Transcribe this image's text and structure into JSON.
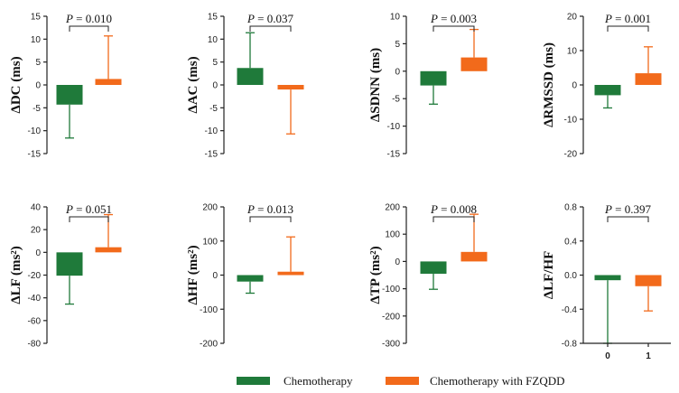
{
  "colors": {
    "chemo": "#1f7a3a",
    "fzqdd": "#f26a1b"
  },
  "legend": [
    {
      "label": "Chemotherapy",
      "color": "#1f7a3a"
    },
    {
      "label": "Chemotherapy with FZQDD",
      "color": "#f26a1b"
    }
  ],
  "chart_data": [
    {
      "type": "bar",
      "ylabel": "ΔDC (ms)",
      "p_label": "P = 0.010",
      "ylim": [
        -15,
        15
      ],
      "ticks": [
        -15,
        -10,
        -5,
        0,
        5,
        10,
        15
      ],
      "tick_labels": [
        "-15",
        "-10",
        "-5",
        "0",
        "5",
        "10",
        "15"
      ],
      "series": [
        {
          "name": "Chemotherapy",
          "value": -4.3,
          "error": 7.3
        },
        {
          "name": "Chemotherapy with FZQDD",
          "value": 1.3,
          "error": 9.4
        }
      ]
    },
    {
      "type": "bar",
      "ylabel": "ΔAC (ms)",
      "p_label": "P = 0.037",
      "ylim": [
        -15,
        15
      ],
      "ticks": [
        -15,
        -10,
        -5,
        0,
        5,
        10,
        15
      ],
      "tick_labels": [
        "-15",
        "-10",
        "-5",
        "0",
        "5",
        "10",
        "15"
      ],
      "series": [
        {
          "name": "Chemotherapy",
          "value": 3.7,
          "error": 7.7
        },
        {
          "name": "Chemotherapy with FZQDD",
          "value": -1.0,
          "error": 9.7
        }
      ]
    },
    {
      "type": "bar",
      "ylabel": "ΔSDNN (ms)",
      "p_label": "P = 0.003",
      "ylim": [
        -15,
        10
      ],
      "ticks": [
        -15,
        -10,
        -5,
        0,
        5,
        10
      ],
      "tick_labels": [
        "-15",
        "-10",
        "-5",
        "0",
        "5",
        "10"
      ],
      "series": [
        {
          "name": "Chemotherapy",
          "value": -2.6,
          "error": 3.4
        },
        {
          "name": "Chemotherapy with FZQDD",
          "value": 2.5,
          "error": 5.1
        }
      ]
    },
    {
      "type": "bar",
      "ylabel": "ΔRMSSD (ms)",
      "p_label": "P = 0.001",
      "ylim": [
        -20,
        20
      ],
      "ticks": [
        -20,
        -10,
        0,
        10,
        20
      ],
      "tick_labels": [
        "-20",
        "-10",
        "0",
        "10",
        "20"
      ],
      "series": [
        {
          "name": "Chemotherapy",
          "value": -3.0,
          "error": 3.7
        },
        {
          "name": "Chemotherapy with FZQDD",
          "value": 3.4,
          "error": 7.7
        }
      ]
    },
    {
      "type": "bar",
      "ylabel": "ΔLF (ms²)",
      "p_label": "P = 0.051",
      "ylim": [
        -80,
        40
      ],
      "ticks": [
        -80,
        -60,
        -40,
        -20,
        0,
        20,
        40
      ],
      "tick_labels": [
        "-80",
        "-60",
        "-40",
        "-20",
        "0",
        "20",
        "40"
      ],
      "series": [
        {
          "name": "Chemotherapy",
          "value": -20.5,
          "error": 25.0
        },
        {
          "name": "Chemotherapy with FZQDD",
          "value": 4.5,
          "error": 28.7
        }
      ]
    },
    {
      "type": "bar",
      "ylabel": "ΔHF (ms²)",
      "p_label": "P = 0.013",
      "ylim": [
        -200,
        200
      ],
      "ticks": [
        -200,
        -100,
        0,
        100,
        200
      ],
      "tick_labels": [
        "-200",
        "-100",
        "0",
        "100",
        "200"
      ],
      "series": [
        {
          "name": "Chemotherapy",
          "value": -19,
          "error": 34
        },
        {
          "name": "Chemotherapy with FZQDD",
          "value": 10,
          "error": 102
        }
      ]
    },
    {
      "type": "bar",
      "ylabel": "ΔTP (ms²)",
      "p_label": "P = 0.008",
      "ylim": [
        -300,
        200
      ],
      "ticks": [
        -300,
        -200,
        -100,
        0,
        100,
        200
      ],
      "tick_labels": [
        "-300",
        "-200",
        "-100",
        "0",
        "100",
        "200"
      ],
      "series": [
        {
          "name": "Chemotherapy",
          "value": -45,
          "error": 57
        },
        {
          "name": "Chemotherapy with FZQDD",
          "value": 35,
          "error": 138
        }
      ]
    },
    {
      "type": "bar",
      "ylabel": "ΔLF/HF",
      "p_label": "P = 0.397",
      "ylim": [
        -0.8,
        0.8
      ],
      "ticks": [
        -0.8,
        -0.4,
        0.0,
        0.4,
        0.8
      ],
      "tick_labels": [
        "-0.8",
        "-0.4",
        "0.0",
        "0.4",
        "0.8"
      ],
      "xtick_labels": [
        "0",
        "1"
      ],
      "series": [
        {
          "name": "Chemotherapy",
          "value": -0.06,
          "error": 0.74
        },
        {
          "name": "Chemotherapy with FZQDD",
          "value": -0.13,
          "error": 0.29
        }
      ]
    }
  ]
}
